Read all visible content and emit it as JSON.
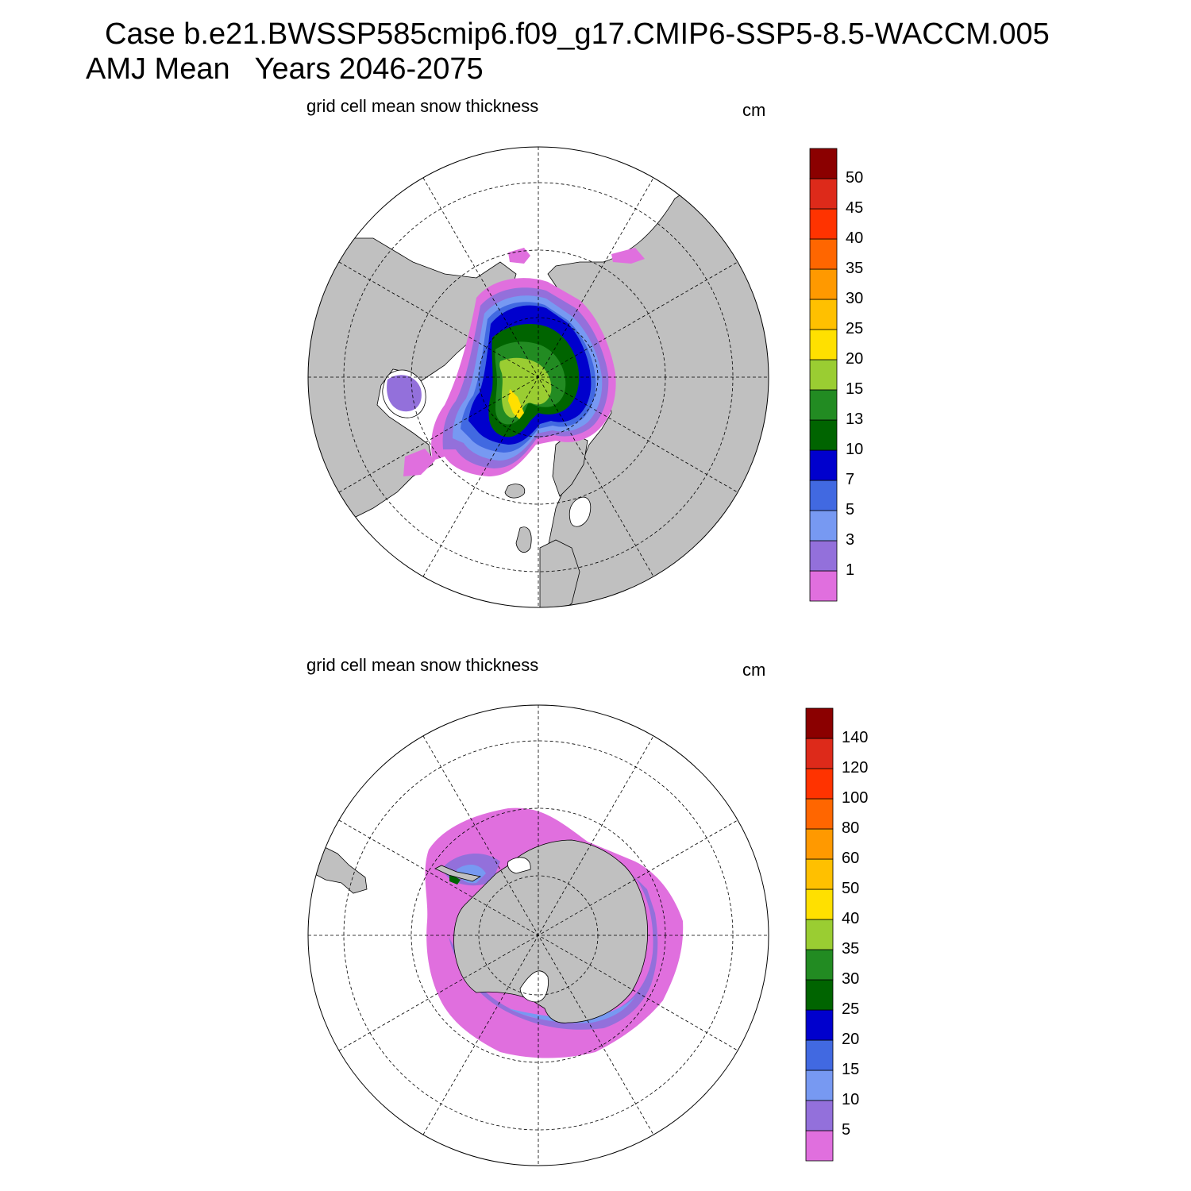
{
  "header": {
    "line1": "Case b.e21.BWSSP585cmip6.f09_g17.CMIP6-SSP5-8.5-WACCM.005",
    "line2": "AMJ Mean   Years 2046-2075"
  },
  "colors": {
    "land": "#c0c0c0",
    "ocean": "#ffffff",
    "palette": [
      "#e06fde",
      "#9370db",
      "#7799f2",
      "#4169e1",
      "#0000cd",
      "#006400",
      "#228b22",
      "#9acd32",
      "#ffe000",
      "#ffc000",
      "#ff9900",
      "#ff6600",
      "#ff3300",
      "#dd2a1a",
      "#8b0000"
    ]
  },
  "panels": [
    {
      "name": "arctic",
      "title": "grid cell mean snow thickness",
      "units": "cm",
      "colorbar_levels": [
        "1",
        "3",
        "5",
        "7",
        "10",
        "13",
        "15",
        "20",
        "25",
        "30",
        "35",
        "40",
        "45",
        "50"
      ]
    },
    {
      "name": "antarctic",
      "title": "grid cell mean snow thickness",
      "units": "cm",
      "colorbar_levels": [
        "5",
        "10",
        "15",
        "20",
        "25",
        "30",
        "35",
        "40",
        "50",
        "60",
        "80",
        "100",
        "120",
        "140"
      ]
    }
  ]
}
